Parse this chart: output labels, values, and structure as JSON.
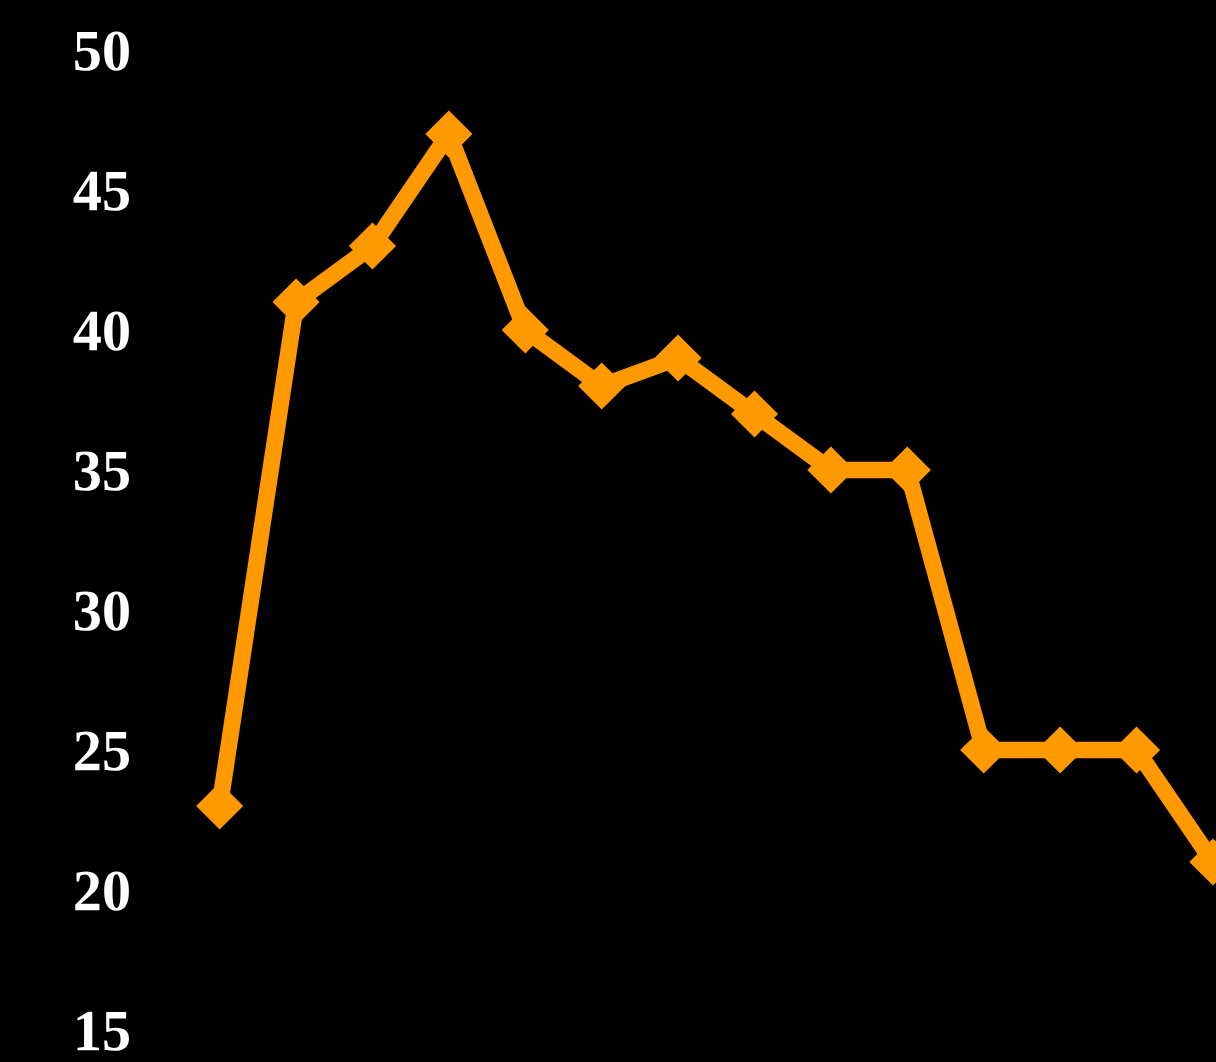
{
  "chart_data": {
    "type": "line",
    "categories": [
      null,
      null,
      null,
      null,
      null,
      null,
      null,
      null,
      null,
      null,
      null,
      null,
      null,
      null
    ],
    "series": [
      {
        "color": "#ff9900",
        "values": [
          23,
          41,
          43,
          47,
          40,
          38,
          39,
          37,
          35,
          35,
          25,
          25,
          25,
          21
        ]
      }
    ],
    "ylim": [
      15,
      50
    ],
    "yticks": [
      15,
      20,
      25,
      30,
      35,
      40,
      45,
      50
    ],
    "marker": "diamond",
    "line_style": "solid",
    "grid": false,
    "legend": false,
    "tick_labels": "y"
  }
}
